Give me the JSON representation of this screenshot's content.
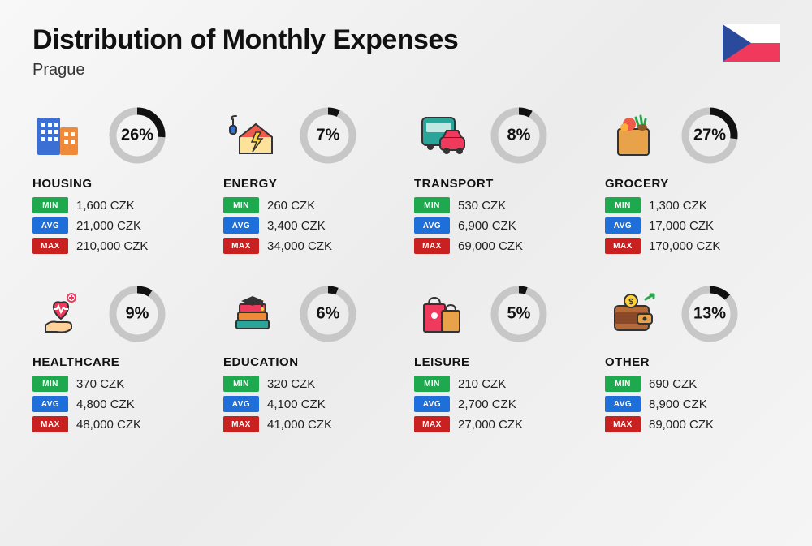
{
  "title": "Distribution of Monthly Expenses",
  "location": "Prague",
  "currency": "CZK",
  "colors": {
    "min_badge": "#1fa94f",
    "avg_badge": "#1e6fd9",
    "max_badge": "#c92020",
    "donut_track": "#c7c7c7",
    "donut_fill": "#111111",
    "text": "#111111",
    "background": "#f3f3f3"
  },
  "badge_labels": {
    "min": "MIN",
    "avg": "AVG",
    "max": "MAX"
  },
  "donut": {
    "radius": 30,
    "stroke_width": 9,
    "font_size": 20
  },
  "flag": {
    "colors": {
      "blue": "#2a4b9b",
      "white": "#ffffff",
      "red": "#ef3a5d"
    }
  },
  "categories": [
    {
      "id": "housing",
      "name": "HOUSING",
      "pct": 26,
      "min": "1,600",
      "avg": "21,000",
      "max": "210,000",
      "icon": "buildings"
    },
    {
      "id": "energy",
      "name": "ENERGY",
      "pct": 7,
      "min": "260",
      "avg": "3,400",
      "max": "34,000",
      "icon": "house-bolt"
    },
    {
      "id": "transport",
      "name": "TRANSPORT",
      "pct": 8,
      "min": "530",
      "avg": "6,900",
      "max": "69,000",
      "icon": "bus-car"
    },
    {
      "id": "grocery",
      "name": "GROCERY",
      "pct": 27,
      "min": "1,300",
      "avg": "17,000",
      "max": "170,000",
      "icon": "grocery-bag"
    },
    {
      "id": "healthcare",
      "name": "HEALTHCARE",
      "pct": 9,
      "min": "370",
      "avg": "4,800",
      "max": "48,000",
      "icon": "heart-hand"
    },
    {
      "id": "education",
      "name": "EDUCATION",
      "pct": 6,
      "min": "320",
      "avg": "4,100",
      "max": "41,000",
      "icon": "grad-books"
    },
    {
      "id": "leisure",
      "name": "LEISURE",
      "pct": 5,
      "min": "210",
      "avg": "2,700",
      "max": "27,000",
      "icon": "shopping-bags"
    },
    {
      "id": "other",
      "name": "OTHER",
      "pct": 13,
      "min": "690",
      "avg": "8,900",
      "max": "89,000",
      "icon": "wallet"
    }
  ]
}
